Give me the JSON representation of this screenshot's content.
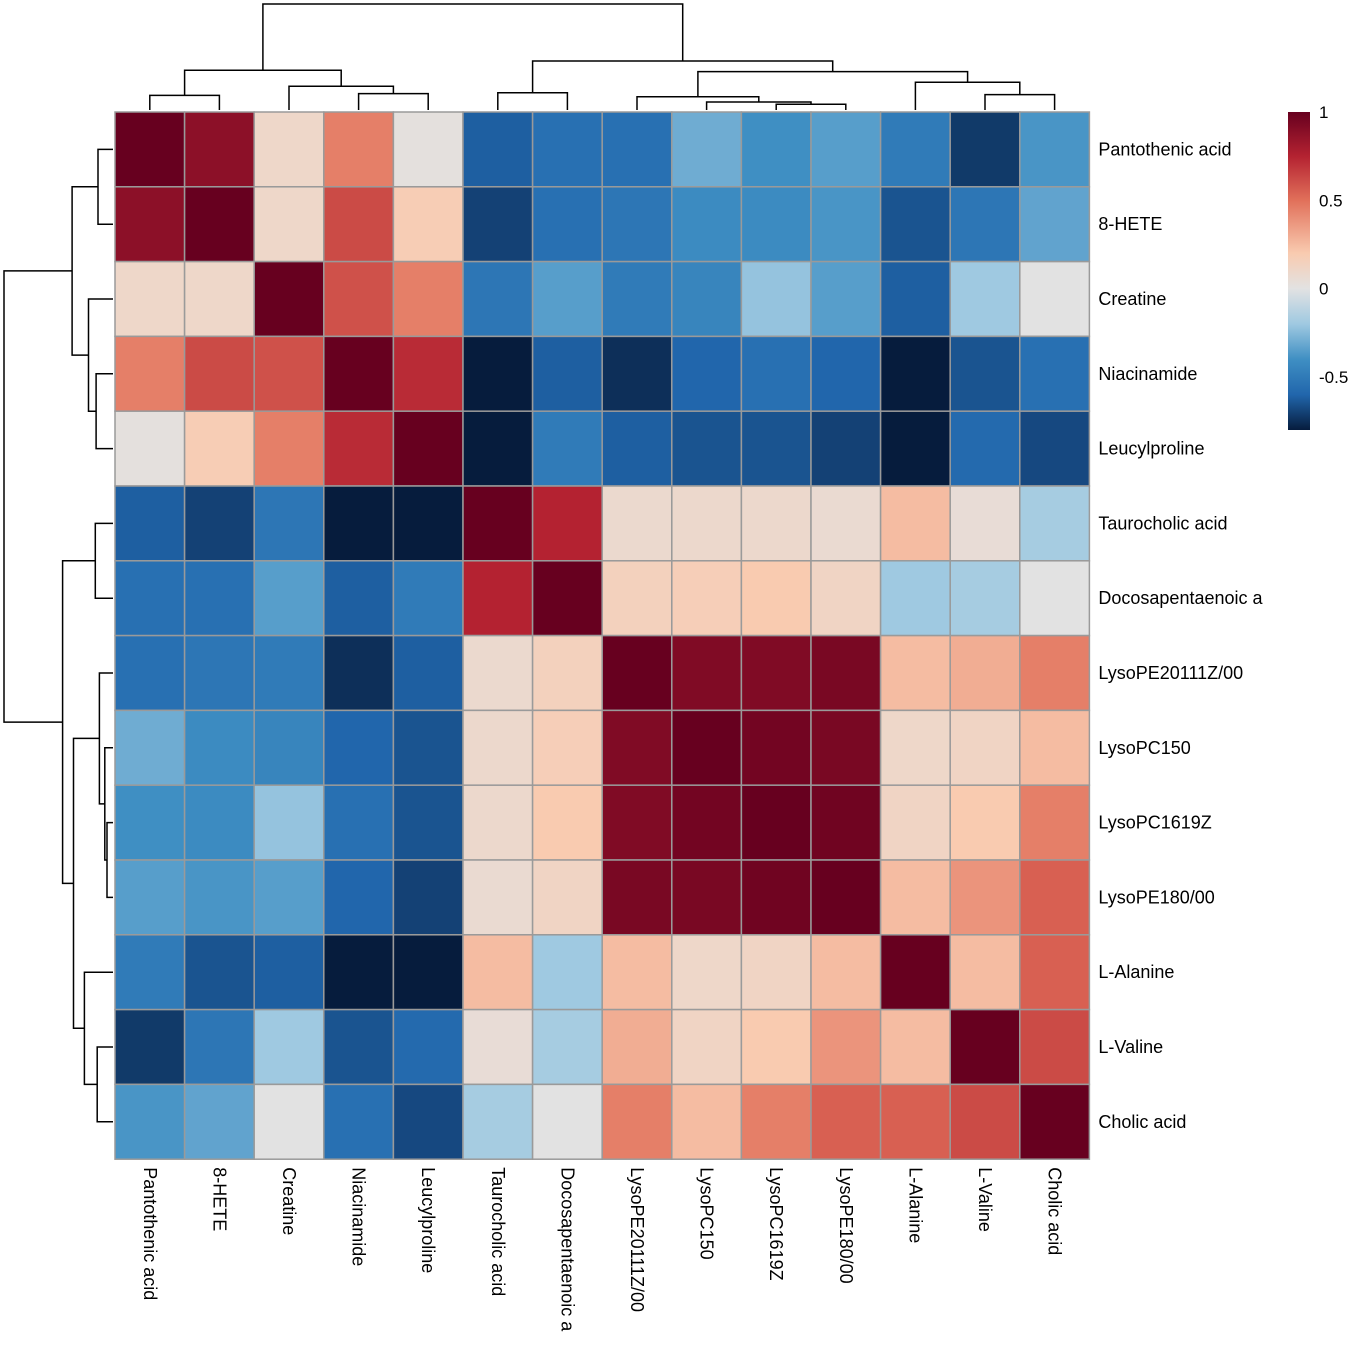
{
  "chart_data": {
    "type": "heatmap",
    "title": "",
    "labels": [
      "Pantothenic acid",
      "8-HETE",
      "Creatine",
      "Niacinamide",
      "Leucylproline",
      "Taurocholic acid",
      "Docosapentaenoic a",
      "LysoPE20111Z/00",
      "LysoPC150",
      "LysoPC1619Z",
      "LysoPE180/00",
      "L-Alanine",
      "L-Valine",
      "Cholic acid"
    ],
    "matrix": [
      [
        1.0,
        0.88,
        0.1,
        0.45,
        0.02,
        -0.62,
        -0.55,
        -0.55,
        -0.3,
        -0.4,
        -0.35,
        -0.5,
        -0.72,
        -0.38
      ],
      [
        0.88,
        1.0,
        0.1,
        0.62,
        0.18,
        -0.7,
        -0.55,
        -0.52,
        -0.42,
        -0.42,
        -0.38,
        -0.65,
        -0.52,
        -0.33
      ],
      [
        0.1,
        0.1,
        1.0,
        0.6,
        0.45,
        -0.52,
        -0.35,
        -0.5,
        -0.45,
        -0.22,
        -0.35,
        -0.62,
        -0.2,
        0.0
      ],
      [
        0.45,
        0.62,
        0.6,
        1.0,
        0.72,
        -0.92,
        -0.62,
        -0.75,
        -0.6,
        -0.55,
        -0.6,
        -0.95,
        -0.65,
        -0.55
      ],
      [
        0.02,
        0.18,
        0.45,
        0.72,
        1.0,
        -0.85,
        -0.5,
        -0.62,
        -0.65,
        -0.65,
        -0.7,
        -0.92,
        -0.58,
        -0.68
      ],
      [
        -0.62,
        -0.7,
        -0.52,
        -0.92,
        -0.85,
        1.0,
        0.75,
        0.08,
        0.09,
        0.09,
        0.07,
        0.25,
        0.05,
        -0.18
      ],
      [
        -0.55,
        -0.55,
        -0.35,
        -0.62,
        -0.5,
        0.75,
        1.0,
        0.15,
        0.17,
        0.2,
        0.12,
        -0.2,
        -0.18,
        0.0
      ],
      [
        -0.55,
        -0.52,
        -0.5,
        -0.75,
        -0.62,
        0.08,
        0.15,
        1.0,
        0.92,
        0.92,
        0.94,
        0.25,
        0.3,
        0.45
      ],
      [
        -0.3,
        -0.42,
        -0.45,
        -0.6,
        -0.65,
        0.09,
        0.17,
        0.92,
        1.0,
        0.96,
        0.94,
        0.1,
        0.12,
        0.25
      ],
      [
        -0.4,
        -0.42,
        -0.22,
        -0.55,
        -0.65,
        0.09,
        0.2,
        0.92,
        0.96,
        1.0,
        0.97,
        0.12,
        0.2,
        0.45
      ],
      [
        -0.35,
        -0.38,
        -0.35,
        -0.6,
        -0.7,
        0.07,
        0.12,
        0.94,
        0.94,
        0.97,
        1.0,
        0.25,
        0.38,
        0.55
      ],
      [
        -0.5,
        -0.65,
        -0.62,
        -0.95,
        -0.92,
        0.25,
        -0.2,
        0.25,
        0.1,
        0.12,
        0.25,
        1.0,
        0.25,
        0.55
      ],
      [
        -0.72,
        -0.52,
        -0.2,
        -0.65,
        -0.58,
        0.05,
        -0.18,
        0.3,
        0.12,
        0.2,
        0.38,
        0.25,
        1.0,
        0.62
      ],
      [
        -0.38,
        -0.33,
        0.0,
        -0.55,
        -0.68,
        -0.18,
        0.0,
        0.45,
        0.25,
        0.45,
        0.55,
        0.55,
        0.62,
        1.0
      ]
    ],
    "color_scale": {
      "stops": [
        {
          "value": -0.8,
          "color": "#061c3d"
        },
        {
          "value": -0.6,
          "color": "#2166ac"
        },
        {
          "value": -0.4,
          "color": "#3f8fc3"
        },
        {
          "value": -0.2,
          "color": "#9fc9e1"
        },
        {
          "value": 0.0,
          "color": "#e2e2e2"
        },
        {
          "value": 0.2,
          "color": "#f9cbb0"
        },
        {
          "value": 0.5,
          "color": "#e1705a"
        },
        {
          "value": 0.75,
          "color": "#b42231"
        },
        {
          "value": 1.0,
          "color": "#67001f"
        }
      ],
      "min": -0.8,
      "max": 1.0
    },
    "legend": {
      "ticks": [
        {
          "value": 1,
          "label": "1"
        },
        {
          "value": 0.5,
          "label": "0.5"
        },
        {
          "value": 0,
          "label": "0"
        },
        {
          "value": -0.5,
          "label": "-0.5"
        }
      ]
    },
    "dendrogram": {
      "merges": [
        [
          0,
          1,
          0.55
        ],
        [
          3,
          4,
          0.62
        ],
        [
          2,
          15,
          0.9
        ],
        [
          14,
          16,
          1.5
        ],
        [
          5,
          6,
          0.65
        ],
        [
          9,
          10,
          0.22
        ],
        [
          8,
          19,
          0.3
        ],
        [
          7,
          20,
          0.5
        ],
        [
          12,
          13,
          0.58
        ],
        [
          11,
          22,
          1.05
        ],
        [
          21,
          23,
          1.45
        ],
        [
          18,
          24,
          1.85
        ],
        [
          17,
          25,
          4.0
        ]
      ],
      "max_height": 4.0
    }
  }
}
